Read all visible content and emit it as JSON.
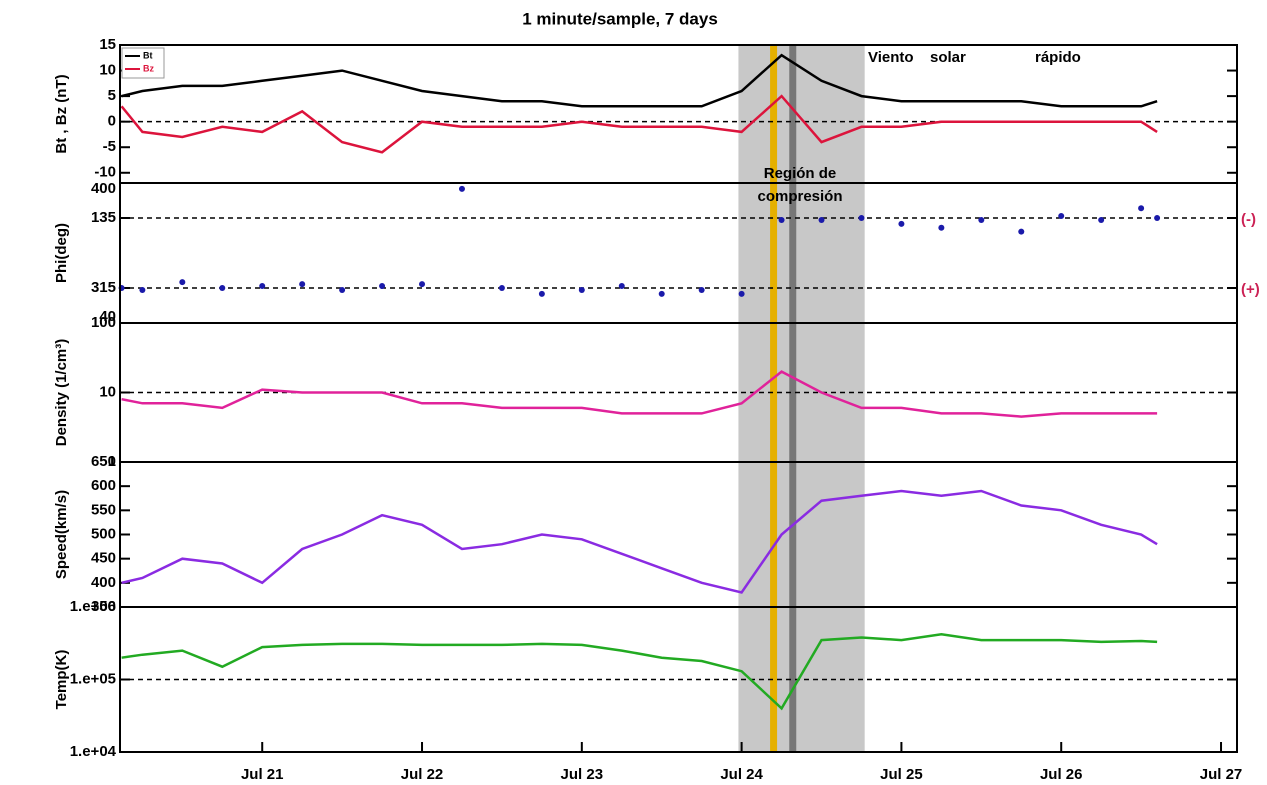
{
  "chart_data": {
    "type": "line",
    "title": "1 minute/sample, 7 days",
    "x": [
      20.12,
      20.25,
      20.5,
      20.75,
      21,
      21.25,
      21.5,
      21.75,
      22,
      22.25,
      22.5,
      22.75,
      23,
      23.25,
      23.5,
      23.75,
      24,
      24.25,
      24.5,
      24.75,
      25,
      25.25,
      25.5,
      25.75,
      26,
      26.25,
      26.5,
      26.6
    ],
    "xlim": [
      20.11,
      27.1
    ],
    "xticks": [
      {
        "value": 21,
        "label": "Jul 21"
      },
      {
        "value": 22,
        "label": "Jul 22"
      },
      {
        "value": 23,
        "label": "Jul 23"
      },
      {
        "value": 24,
        "label": "Jul 24"
      },
      {
        "value": 25,
        "label": "Jul 25"
      },
      {
        "value": 26,
        "label": "Jul 26"
      },
      {
        "value": 27,
        "label": "Jul 27"
      }
    ],
    "highlights": {
      "band": [
        23.98,
        24.77
      ],
      "band_color": "#c8c8c8",
      "lines": [
        {
          "x": 24.2,
          "color": "#e5b000"
        },
        {
          "x": 24.32,
          "color": "#777777"
        }
      ]
    },
    "annotations": [
      "Viento",
      "solar",
      "rápido",
      "Región de",
      "compresión"
    ],
    "panels": [
      {
        "ylabel": "Bt , Bz (nT)",
        "ylim": [
          -12,
          15
        ],
        "yticks": [
          -10,
          -5,
          0,
          5,
          10,
          15
        ],
        "log": false,
        "ref_lines": [
          0
        ],
        "legend": "top-left",
        "series": [
          {
            "name": "Bt",
            "color": "#000000",
            "style": "line",
            "values": [
              5,
              6,
              7,
              7,
              8,
              9,
              10,
              8,
              6,
              5,
              4,
              4,
              3,
              3,
              3,
              3,
              6,
              13,
              8,
              5,
              4,
              4,
              4,
              4,
              3,
              3,
              3,
              4
            ]
          },
          {
            "name": "Bz",
            "color": "#dc143c",
            "style": "line",
            "values": [
              3,
              -2,
              -3,
              -1,
              -2,
              2,
              -4,
              -6,
              0,
              -1,
              -1,
              -1,
              0,
              -1,
              -1,
              -1,
              -2,
              5,
              -4,
              -1,
              -1,
              0,
              0,
              0,
              0,
              0,
              0,
              -2
            ]
          }
        ]
      },
      {
        "ylabel": "Phi(deg)",
        "ylim": [
          405,
          45
        ],
        "yticks": [
          135,
          315
        ],
        "end_labels": [
          "40",
          "400"
        ],
        "log": false,
        "ref_lines": [
          135,
          315
        ],
        "side_labels": [
          "(-)",
          "(+)"
        ],
        "series": [
          {
            "color": "#1a1aaa",
            "style": "dots",
            "values": [
              315,
              320,
              300,
              315,
              310,
              305,
              320,
              310,
              305,
              60,
              315,
              330,
              320,
              310,
              330,
              320,
              330,
              140,
              140,
              135,
              150,
              160,
              140,
              170,
              130,
              140,
              110,
              135
            ]
          }
        ]
      },
      {
        "ylabel": "Density (1/cm³)",
        "ylim": [
          1,
          100
        ],
        "yticks": [
          1,
          10,
          100
        ],
        "log": true,
        "ref_lines": [
          10
        ],
        "series": [
          {
            "color": "#e0229a",
            "style": "line",
            "values": [
              8,
              7,
              7,
              6,
              11,
              10,
              10,
              10,
              7,
              7,
              6,
              6,
              6,
              5,
              5,
              5,
              7,
              20,
              10,
              6,
              6,
              5,
              5,
              4.5,
              5,
              5,
              5,
              5
            ]
          }
        ]
      },
      {
        "ylabel": "Speed(km/s)",
        "ylim": [
          350,
          650
        ],
        "yticks": [
          350,
          400,
          450,
          500,
          550,
          600,
          650
        ],
        "log": false,
        "ref_lines": [],
        "series": [
          {
            "color": "#8a2be2",
            "style": "line",
            "values": [
              400,
              410,
              450,
              440,
              400,
              470,
              500,
              540,
              520,
              470,
              480,
              500,
              490,
              460,
              430,
              400,
              380,
              500,
              570,
              580,
              590,
              580,
              590,
              560,
              550,
              520,
              500,
              480
            ]
          }
        ]
      },
      {
        "ylabel": "Temp(K)",
        "ylim": [
          10000,
          1000000
        ],
        "yticks": [
          {
            "value": 10000,
            "label": "1.e+04"
          },
          {
            "value": 100000,
            "label": "1.e+05"
          },
          {
            "value": 1000000,
            "label": "1.e+06"
          }
        ],
        "log": true,
        "ref_lines": [
          100000
        ],
        "series": [
          {
            "color": "#22aa22",
            "style": "line",
            "values": [
              200000,
              220000,
              250000,
              150000,
              280000,
              300000,
              310000,
              310000,
              300000,
              300000,
              300000,
              310000,
              300000,
              250000,
              200000,
              180000,
              130000,
              40000,
              350000,
              380000,
              350000,
              420000,
              350000,
              350000,
              350000,
              330000,
              340000,
              330000
            ]
          }
        ]
      }
    ]
  }
}
